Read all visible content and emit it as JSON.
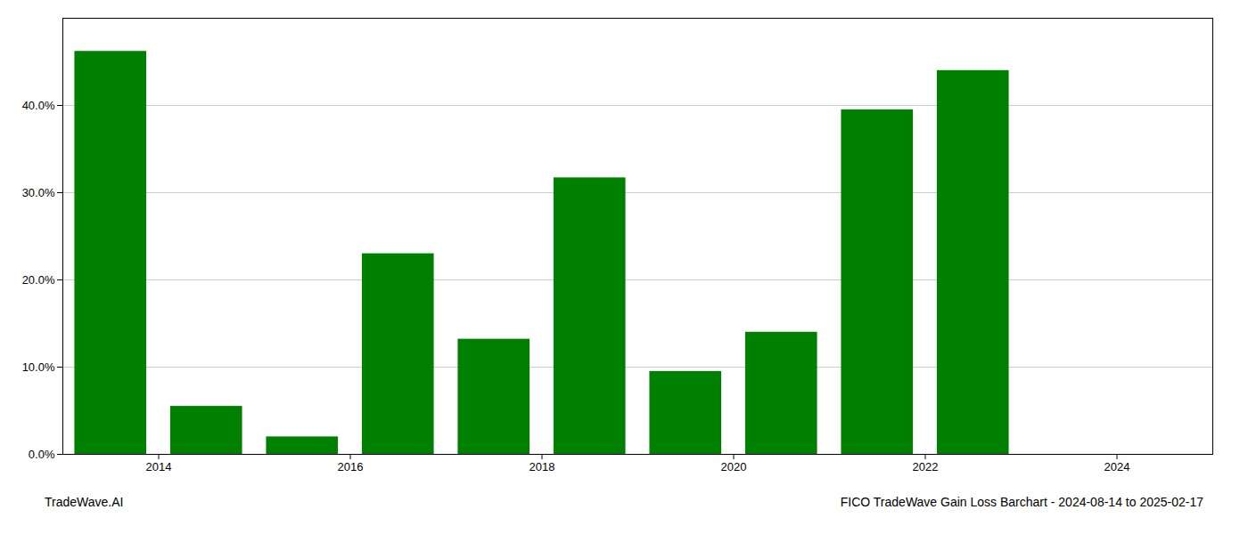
{
  "chart_data": {
    "type": "bar",
    "x": [
      2013.5,
      2014.5,
      2015.5,
      2016.5,
      2017.5,
      2018.5,
      2019.5,
      2020.5,
      2021.5,
      2022.5
    ],
    "values": [
      0.462,
      0.055,
      0.02,
      0.23,
      0.132,
      0.317,
      0.095,
      0.14,
      0.395,
      0.44
    ],
    "color": "#008000",
    "xlim": [
      2013.0,
      2025.0
    ],
    "xticks": [
      2014,
      2016,
      2018,
      2020,
      2022,
      2024
    ],
    "ylim": [
      0,
      0.5
    ],
    "yticks": [
      {
        "value": 0.0,
        "label": "0.0%"
      },
      {
        "value": 0.1,
        "label": "10.0%"
      },
      {
        "value": 0.2,
        "label": "20.0%"
      },
      {
        "value": 0.3,
        "label": "30.0%"
      },
      {
        "value": 0.4,
        "label": "40.0%"
      }
    ],
    "grid": true,
    "annotations": [
      "TradeWave.AI",
      "FICO TradeWave Gain Loss Barchart - 2024-08-14 to 2025-02-17"
    ]
  }
}
